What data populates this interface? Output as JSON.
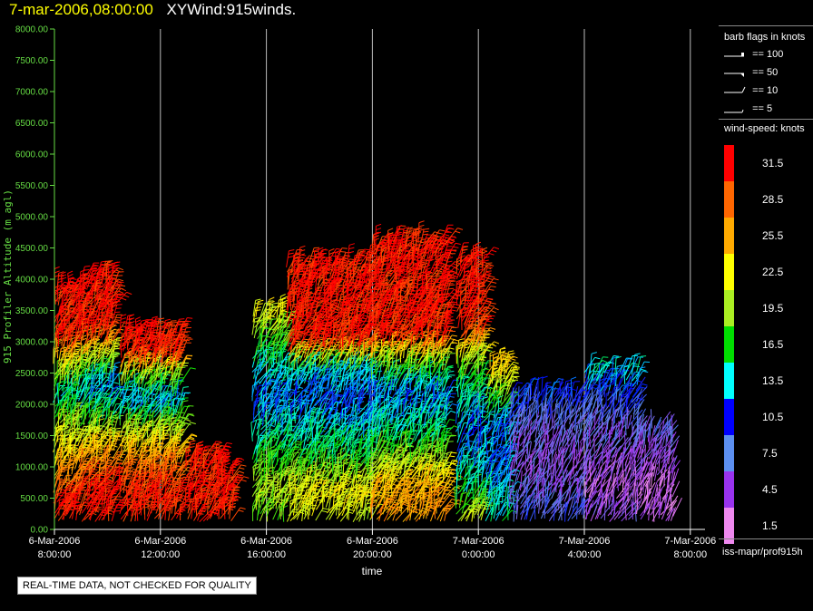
{
  "header": {
    "date": "7-mar-2006,08:00:00",
    "name": "XYWind:915winds."
  },
  "chart_data": {
    "type": "scatter",
    "subtype": "wind-barbs",
    "ylabel": "915 Profiler Altitude (m agl)",
    "xlabel": "time",
    "ylim": [
      0,
      8000
    ],
    "y_ticks": [
      "0.00",
      "500.00",
      "1000.00",
      "1500.00",
      "2000.00",
      "2500.00",
      "3000.00",
      "3500.00",
      "4000.00",
      "4500.00",
      "5000.00",
      "5500.00",
      "6000.00",
      "6500.00",
      "7000.00",
      "7500.00",
      "8000.00"
    ],
    "x_ticks": [
      {
        "line1": "6-Mar-2006",
        "line2": "8:00:00"
      },
      {
        "line1": "6-Mar-2006",
        "line2": "12:00:00"
      },
      {
        "line1": "6-Mar-2006",
        "line2": "16:00:00"
      },
      {
        "line1": "6-Mar-2006",
        "line2": "20:00:00"
      },
      {
        "line1": "7-Mar-2006",
        "line2": "0:00:00"
      },
      {
        "line1": "7-Mar-2006",
        "line2": "4:00:00"
      },
      {
        "line1": "7-Mar-2006",
        "line2": "8:00:00"
      }
    ],
    "xlim_hours": [
      0,
      24
    ],
    "grid": "vertical",
    "profiles": [
      {
        "start": 0.0,
        "end": 1.0,
        "top": 3900,
        "speed": [
          [
            0,
            31
          ],
          [
            400,
            31
          ],
          [
            1000,
            25
          ],
          [
            1700,
            19
          ],
          [
            2100,
            14
          ],
          [
            2600,
            23
          ],
          [
            3000,
            31
          ],
          [
            3900,
            31
          ]
        ]
      },
      {
        "start": 1.0,
        "end": 2.2,
        "top": 4100,
        "speed": [
          [
            0,
            31
          ],
          [
            600,
            31
          ],
          [
            1200,
            25
          ],
          [
            1800,
            16
          ],
          [
            2200,
            12
          ],
          [
            2700,
            21
          ],
          [
            3100,
            31
          ],
          [
            4100,
            31
          ]
        ]
      },
      {
        "start": 2.5,
        "end": 4.8,
        "top": 3200,
        "speed": [
          [
            0,
            31
          ],
          [
            500,
            31
          ],
          [
            1100,
            26
          ],
          [
            1600,
            19
          ],
          [
            2000,
            12
          ],
          [
            2400,
            20
          ],
          [
            2700,
            31
          ],
          [
            3200,
            31
          ]
        ]
      },
      {
        "start": 5.0,
        "end": 6.2,
        "top": 1200,
        "speed": [
          [
            0,
            31
          ],
          [
            1200,
            31
          ]
        ]
      },
      {
        "start": 6.3,
        "end": 6.8,
        "top": 1000,
        "speed": [
          [
            0,
            31
          ],
          [
            1000,
            31
          ]
        ]
      },
      {
        "start": 7.5,
        "end": 8.8,
        "top": 3400,
        "speed": [
          [
            0,
            18
          ],
          [
            600,
            20
          ],
          [
            1200,
            16
          ],
          [
            1700,
            13
          ],
          [
            2200,
            12
          ],
          [
            2700,
            16
          ],
          [
            3100,
            19
          ],
          [
            3400,
            22
          ]
        ]
      },
      {
        "start": 8.8,
        "end": 12.0,
        "top": 4200,
        "speed": [
          [
            0,
            20
          ],
          [
            500,
            23
          ],
          [
            1000,
            17
          ],
          [
            1500,
            14
          ],
          [
            2000,
            11
          ],
          [
            2500,
            14
          ],
          [
            2900,
            31
          ],
          [
            4200,
            31
          ]
        ]
      },
      {
        "start": 12.0,
        "end": 14.8,
        "top": 4600,
        "speed": [
          [
            0,
            27
          ],
          [
            600,
            25
          ],
          [
            1100,
            19
          ],
          [
            1600,
            14
          ],
          [
            2100,
            12
          ],
          [
            2600,
            19
          ],
          [
            3000,
            31
          ],
          [
            4600,
            31
          ]
        ]
      },
      {
        "start": 15.2,
        "end": 16.2,
        "top": 4300,
        "speed": [
          [
            0,
            22
          ],
          [
            500,
            16
          ],
          [
            1000,
            13
          ],
          [
            1500,
            12
          ],
          [
            2000,
            14
          ],
          [
            2600,
            19
          ],
          [
            3200,
            31
          ],
          [
            4300,
            31
          ]
        ]
      },
      {
        "start": 16.3,
        "end": 17.2,
        "top": 2600,
        "speed": [
          [
            0,
            15
          ],
          [
            600,
            13
          ],
          [
            1200,
            12
          ],
          [
            1700,
            13
          ],
          [
            2200,
            20
          ],
          [
            2600,
            25
          ]
        ]
      },
      {
        "start": 17.2,
        "end": 20.0,
        "top": 2200,
        "speed": [
          [
            200,
            8
          ],
          [
            600,
            6
          ],
          [
            1000,
            5
          ],
          [
            1400,
            6
          ],
          [
            1800,
            8
          ],
          [
            2200,
            11
          ]
        ]
      },
      {
        "start": 20.0,
        "end": 22.0,
        "top": 2500,
        "speed": [
          [
            200,
            5
          ],
          [
            500,
            3
          ],
          [
            900,
            4
          ],
          [
            1300,
            6
          ],
          [
            1700,
            7
          ],
          [
            2100,
            10
          ],
          [
            2500,
            14
          ]
        ]
      },
      {
        "start": 22.0,
        "end": 23.4,
        "top": 1600,
        "speed": [
          [
            200,
            3
          ],
          [
            500,
            2
          ],
          [
            800,
            3
          ],
          [
            1100,
            5
          ],
          [
            1400,
            6
          ],
          [
            1600,
            7
          ]
        ]
      }
    ]
  },
  "legend": {
    "barb_title": "barb flags in knots",
    "barbs": [
      {
        "label": "== 100"
      },
      {
        "label": "== 50"
      },
      {
        "label": "== 10"
      },
      {
        "label": "== 5"
      }
    ],
    "speed_title": "wind-speed: knots",
    "colorbar": [
      {
        "label": "31.5",
        "color": "#ff0000"
      },
      {
        "label": "28.5",
        "color": "#ff6600"
      },
      {
        "label": "25.5",
        "color": "#ffaa00"
      },
      {
        "label": "22.5",
        "color": "#ffff00"
      },
      {
        "label": "19.5",
        "color": "#aaee22"
      },
      {
        "label": "16.5",
        "color": "#00dd00"
      },
      {
        "label": "13.5",
        "color": "#00ffff"
      },
      {
        "label": "10.5",
        "color": "#0000ff"
      },
      {
        "label": "7.5",
        "color": "#5c8ff0"
      },
      {
        "label": "4.5",
        "color": "#9933ee"
      },
      {
        "label": "1.5",
        "color": "#ee88ee"
      }
    ]
  },
  "source": "iss-mapr/prof915h",
  "notice": "REAL-TIME DATA, NOT CHECKED FOR QUALITY",
  "colors": {
    "axis": "#66dd44",
    "grid": "#bbbbbb",
    "title_date": "#ffff00"
  }
}
